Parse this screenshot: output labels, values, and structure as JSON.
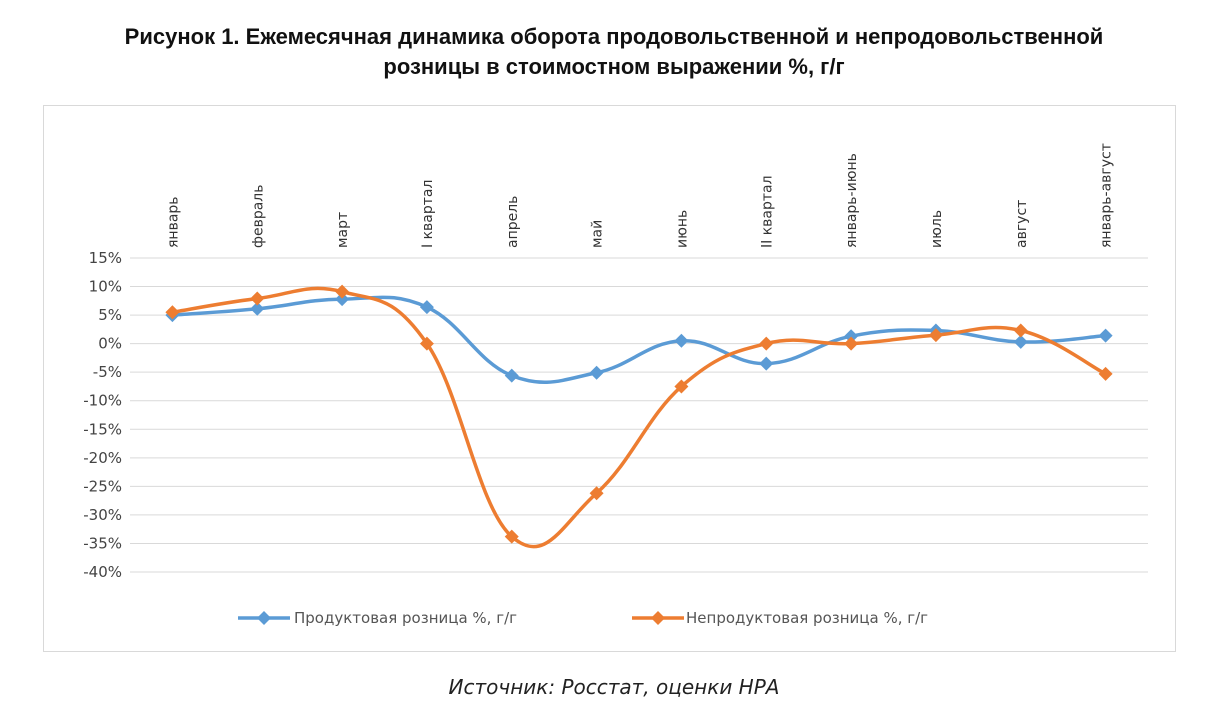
{
  "title_line1": "Рисунок 1. Ежемесячная динамика оборота продовольственной и непродовольственной",
  "title_line2": "розницы в стоимостном выражении %, г/г",
  "source": "Источник: Росстат, оценки НРА",
  "chart_data": {
    "type": "line",
    "categories": [
      "январь",
      "февраль",
      "март",
      "I квартал",
      "апрель",
      "май",
      "июнь",
      "II квартал",
      "январь-июнь",
      "июль",
      "август",
      "январь-август"
    ],
    "y_ticks": [
      "15%",
      "10%",
      "5%",
      "0%",
      "-5%",
      "-10%",
      "-15%",
      "-20%",
      "-25%",
      "-30%",
      "-35%",
      "-40%"
    ],
    "ylim": [
      -40,
      15
    ],
    "y_step": 5,
    "grid": true,
    "smooth": true,
    "legend_position": "bottom",
    "series": [
      {
        "name": "Продуктовая розница %, г/г",
        "color": "#5B9BD5",
        "values": [
          5.0,
          6.1,
          7.8,
          6.4,
          -5.6,
          -5.1,
          0.5,
          -3.5,
          1.3,
          2.3,
          0.3,
          1.4
        ]
      },
      {
        "name": "Непродуктовая розница %, г/г",
        "color": "#ED7D31",
        "values": [
          5.5,
          7.9,
          9.1,
          0.0,
          -33.8,
          -26.2,
          -7.5,
          0.0,
          0.0,
          1.5,
          2.3,
          -5.3
        ]
      }
    ]
  }
}
